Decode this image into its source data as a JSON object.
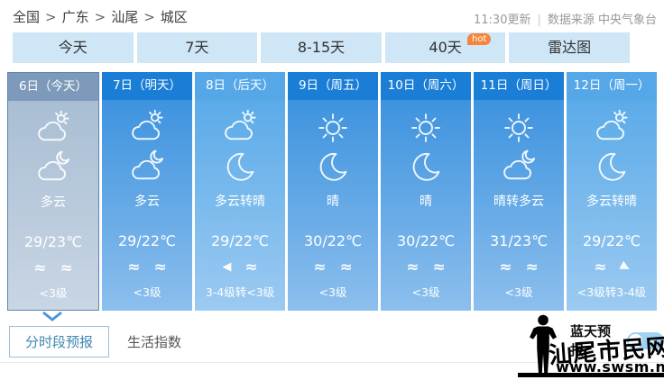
{
  "breadcrumb": {
    "separator": ">",
    "items": [
      "全国",
      "广东",
      "汕尾",
      "城区"
    ]
  },
  "update_info": {
    "time": "11:30更新",
    "source": "数据来源 中央气象台"
  },
  "tabs": [
    {
      "label": "今天"
    },
    {
      "label": "7天"
    },
    {
      "label": "8-15天"
    },
    {
      "label": "40天",
      "badge": "hot"
    },
    {
      "label": "雷达图"
    }
  ],
  "forecast": {
    "days": [
      {
        "date": "6日（今天）",
        "theme": "today",
        "day_icon": "cloud-sun",
        "night_icon": "cloud-moon",
        "weather": "多云",
        "temp": "29/23℃",
        "wind_icons": [
          "breeze",
          "breeze"
        ],
        "wind": "<3级"
      },
      {
        "date": "7日（明天）",
        "theme": "dark",
        "day_icon": "cloud-sun",
        "night_icon": "cloud-moon",
        "weather": "多云",
        "temp": "29/22℃",
        "wind_icons": [
          "breeze",
          "breeze"
        ],
        "wind": "<3级"
      },
      {
        "date": "8日（后天）",
        "theme": "light",
        "day_icon": "cloud-sun",
        "night_icon": "moon",
        "weather": "多云转晴",
        "temp": "29/22℃",
        "wind_icons": [
          "arrow-left",
          "breeze"
        ],
        "wind": "3-4级转<3级"
      },
      {
        "date": "9日（周五）",
        "theme": "dark",
        "day_icon": "sun",
        "night_icon": "moon",
        "weather": "晴",
        "temp": "30/22℃",
        "wind_icons": [
          "breeze",
          "breeze"
        ],
        "wind": "<3级"
      },
      {
        "date": "10日（周六）",
        "theme": "dark",
        "day_icon": "sun",
        "night_icon": "moon",
        "weather": "晴",
        "temp": "30/22℃",
        "wind_icons": [
          "breeze",
          "breeze"
        ],
        "wind": "<3级"
      },
      {
        "date": "11日（周日）",
        "theme": "dark",
        "day_icon": "sun",
        "night_icon": "cloud-moon",
        "weather": "晴转多云",
        "temp": "31/23℃",
        "wind_icons": [
          "breeze",
          "breeze"
        ],
        "wind": "<3级"
      },
      {
        "date": "12日（周一）",
        "theme": "light",
        "day_icon": "cloud-sun",
        "night_icon": "moon",
        "weather": "多云转晴",
        "temp": "29/22℃",
        "wind_icons": [
          "breeze",
          "arrow-right"
        ],
        "wind": "<3级转3-4级"
      }
    ]
  },
  "bottom_tabs": {
    "hourly": "分时段预报",
    "life": "生活指数"
  },
  "blue_sky": {
    "label": "蓝天预报",
    "state": "开"
  },
  "watermark": {
    "site_name": "汕尾市民网",
    "site_url": "www.swsm.net"
  },
  "colors": {
    "tab_bg": "#cfe6f7",
    "column_header_dark": "#1a7ed6",
    "column_header_light": "#55a7e8",
    "column_header_today": "#7d9aba",
    "hot_badge": "#f5853a",
    "toggle": "#9fd3f2",
    "active_segment_text": "#3f87b0"
  }
}
